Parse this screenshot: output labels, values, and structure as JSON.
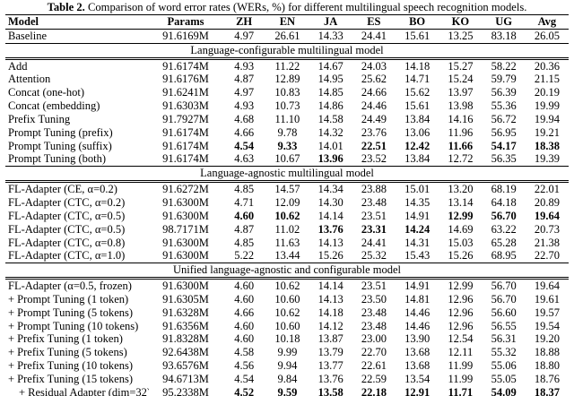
{
  "caption": {
    "label": "Table 2.",
    "text": "Comparison of word error rates (WERs, %) for different multilingual speech recognition models."
  },
  "table": {
    "columns": [
      "Model",
      "Params",
      "ZH",
      "EN",
      "JA",
      "ES",
      "BO",
      "KO",
      "UG",
      "Avg"
    ],
    "sections": [
      {
        "header": null,
        "rows": [
          {
            "model": "Baseline",
            "params": "91.6169M",
            "values": [
              "4.97",
              "26.61",
              "14.33",
              "24.41",
              "15.61",
              "13.25",
              "83.18",
              "26.05"
            ]
          }
        ]
      },
      {
        "header": "Language-configurable multilingual model",
        "rows": [
          {
            "model": "Add",
            "params": "91.6174M",
            "values": [
              "4.93",
              "11.22",
              "14.67",
              "24.03",
              "14.18",
              "15.27",
              "58.22",
              "20.36"
            ]
          },
          {
            "model": "Attention",
            "params": "91.6176M",
            "values": [
              "4.87",
              "12.89",
              "14.95",
              "25.62",
              "14.71",
              "15.24",
              "59.79",
              "21.15"
            ]
          },
          {
            "model": "Concat (one-hot)",
            "params": "91.6241M",
            "values": [
              "4.97",
              "10.83",
              "14.85",
              "24.66",
              "15.62",
              "13.97",
              "56.39",
              "20.19"
            ]
          },
          {
            "model": "Concat (embedding)",
            "params": "91.6303M",
            "values": [
              "4.93",
              "10.73",
              "14.86",
              "24.46",
              "15.61",
              "13.98",
              "55.36",
              "19.99"
            ]
          },
          {
            "model": "Prefix Tuning",
            "params": "91.7927M",
            "values": [
              "4.68",
              "11.10",
              "14.58",
              "24.49",
              "13.84",
              "14.16",
              "56.72",
              "19.94"
            ]
          },
          {
            "model": "Prompt Tuning (prefix)",
            "params": "91.6174M",
            "values": [
              "4.66",
              "9.78",
              "14.32",
              "23.76",
              "13.06",
              "11.96",
              "56.95",
              "19.21"
            ]
          },
          {
            "model": "Prompt Tuning (suffix)",
            "params": "91.6174M",
            "values": [
              "4.54",
              "9.33",
              "14.01",
              "22.51",
              "12.42",
              "11.66",
              "54.17",
              "18.38"
            ],
            "bold": [
              true,
              true,
              false,
              true,
              true,
              true,
              true,
              true
            ]
          },
          {
            "model": "Prompt Tuning (both)",
            "params": "91.6174M",
            "values": [
              "4.63",
              "10.67",
              "13.96",
              "23.52",
              "13.84",
              "12.72",
              "56.35",
              "19.39"
            ],
            "bold": [
              false,
              false,
              true,
              false,
              false,
              false,
              false,
              false
            ]
          }
        ]
      },
      {
        "header": "Language-agnostic multilingual model",
        "rows": [
          {
            "model": "FL-Adapter (CE, α=0.2)",
            "params": "91.6272M",
            "values": [
              "4.85",
              "14.57",
              "14.34",
              "23.88",
              "15.01",
              "13.20",
              "68.19",
              "22.01"
            ]
          },
          {
            "model": "FL-Adapter (CTC, α=0.2)",
            "params": "91.6300M",
            "values": [
              "4.71",
              "12.09",
              "14.30",
              "23.48",
              "14.35",
              "13.14",
              "64.18",
              "20.89"
            ]
          },
          {
            "model": "FL-Adapter (CTC, α=0.5)",
            "params": "91.6300M",
            "values": [
              "4.60",
              "10.62",
              "14.14",
              "23.51",
              "14.91",
              "12.99",
              "56.70",
              "19.64"
            ],
            "bold": [
              true,
              true,
              false,
              false,
              false,
              true,
              true,
              true
            ]
          },
          {
            "model": "FL-Adapter (CTC, α=0.5)",
            "params": "98.7171M",
            "values": [
              "4.87",
              "11.02",
              "13.76",
              "23.31",
              "14.24",
              "14.69",
              "63.22",
              "20.73"
            ],
            "bold": [
              false,
              false,
              true,
              true,
              true,
              false,
              false,
              false
            ]
          },
          {
            "model": "FL-Adapter (CTC, α=0.8)",
            "params": "91.6300M",
            "values": [
              "4.85",
              "11.63",
              "14.13",
              "24.41",
              "14.31",
              "15.03",
              "65.28",
              "21.38"
            ]
          },
          {
            "model": "FL-Adapter (CTC, α=1.0)",
            "params": "91.6300M",
            "values": [
              "5.22",
              "13.44",
              "15.26",
              "25.32",
              "15.43",
              "15.26",
              "68.95",
              "22.70"
            ]
          }
        ]
      },
      {
        "header": "Unified language-agnostic and configurable model",
        "rows": [
          {
            "model": "FL-Adapter (α=0.5, frozen)",
            "params": "91.6300M",
            "values": [
              "4.60",
              "10.62",
              "14.14",
              "23.51",
              "14.91",
              "12.99",
              "56.70",
              "19.64"
            ]
          },
          {
            "model": "+ Prompt Tuning (1 token)",
            "params": "91.6305M",
            "values": [
              "4.60",
              "10.60",
              "14.13",
              "23.50",
              "14.81",
              "12.96",
              "56.70",
              "19.61"
            ]
          },
          {
            "model": "+ Prompt Tuning (5 tokens)",
            "params": "91.6328M",
            "values": [
              "4.66",
              "10.62",
              "14.18",
              "23.48",
              "14.46",
              "12.96",
              "56.60",
              "19.57"
            ]
          },
          {
            "model": "+ Prompt Tuning (10 tokens)",
            "params": "91.6356M",
            "values": [
              "4.60",
              "10.60",
              "14.12",
              "23.48",
              "14.46",
              "12.96",
              "56.55",
              "19.54"
            ]
          },
          {
            "model": "+ Prefix Tuning (1 token)",
            "params": "91.8328M",
            "values": [
              "4.60",
              "10.18",
              "13.87",
              "23.00",
              "13.90",
              "12.54",
              "56.31",
              "19.20"
            ]
          },
          {
            "model": "+ Prefix Tuning (5 tokens)",
            "params": "92.6438M",
            "values": [
              "4.58",
              "9.99",
              "13.79",
              "22.70",
              "13.68",
              "12.11",
              "55.32",
              "18.88"
            ]
          },
          {
            "model": "+ Prefix Tuning (10 tokens)",
            "params": "93.6576M",
            "values": [
              "4.56",
              "9.94",
              "13.77",
              "22.61",
              "13.68",
              "11.99",
              "55.06",
              "18.80"
            ]
          },
          {
            "model": "+ Prefix Tuning (15 tokens)",
            "params": "94.6713M",
            "values": [
              "4.54",
              "9.84",
              "13.76",
              "22.59",
              "13.54",
              "11.99",
              "55.05",
              "18.76"
            ]
          },
          {
            "model": "+ Residual Adapter (dim=32)",
            "params": "95.2338M",
            "values": [
              "4.52",
              "9.59",
              "13.58",
              "22.18",
              "12.91",
              "11.71",
              "54.09",
              "18.37"
            ],
            "bold": [
              true,
              true,
              true,
              true,
              true,
              true,
              true,
              true
            ],
            "indent": true
          }
        ]
      }
    ]
  }
}
